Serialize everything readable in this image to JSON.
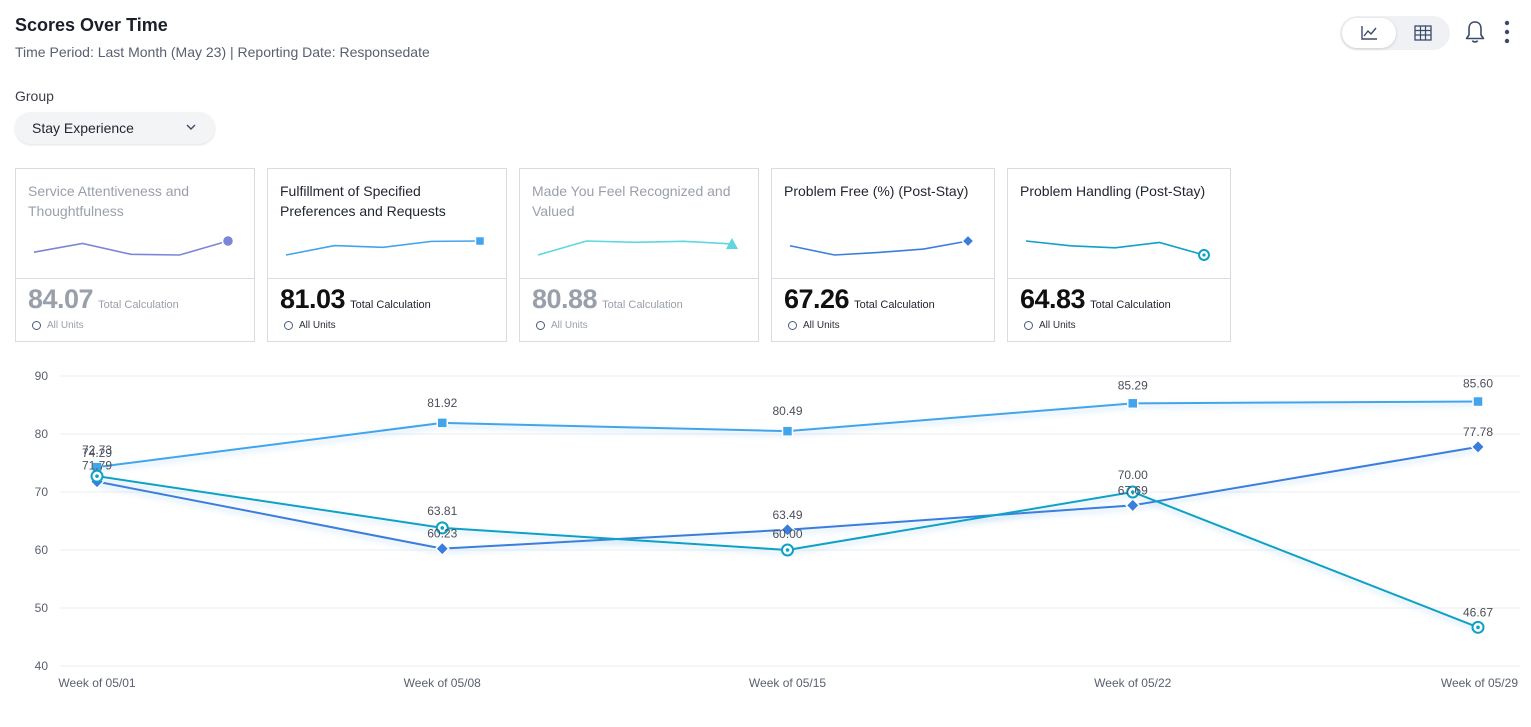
{
  "header": {
    "title": "Scores Over Time",
    "subtitle": "Time Period: Last Month (May 23) | Reporting Date: Responsedate"
  },
  "toolbar": {
    "icons": [
      "line-chart-icon",
      "table-icon",
      "bell-icon",
      "more-vertical-icon"
    ]
  },
  "group": {
    "label": "Group",
    "selected": "Stay Experience"
  },
  "cards": [
    {
      "title": "Service Attentiveness and Thoughtfulness",
      "value": "84.07",
      "calc": "Total Calculation",
      "unit": "All Units",
      "muted": true,
      "color": "#7b86d6",
      "marker": "circle",
      "spark": [
        74.29,
        81.92,
        72.4,
        71.8,
        84.07
      ]
    },
    {
      "title": "Fulfillment of Specified Preferences and Requests",
      "value": "81.03",
      "calc": "Total Calculation",
      "unit": "All Units",
      "muted": false,
      "color": "#42a5ec",
      "marker": "square",
      "spark": [
        74.29,
        81.92,
        80.49,
        85.29,
        85.6
      ]
    },
    {
      "title": "Made You Feel Recognized and Valued",
      "value": "80.88",
      "calc": "Total Calculation",
      "unit": "All Units",
      "muted": true,
      "color": "#5fd7dd",
      "marker": "triangle",
      "spark": [
        72.0,
        81.5,
        80.6,
        81.3,
        79.5
      ]
    },
    {
      "title": "Problem Free (%) (Post-Stay)",
      "value": "67.26",
      "calc": "Total Calculation",
      "unit": "All Units",
      "muted": false,
      "color": "#3b7ddd",
      "marker": "diamond",
      "spark": [
        71.79,
        60.23,
        63.49,
        67.69,
        77.78
      ]
    },
    {
      "title": "Problem Handling (Post-Stay)",
      "value": "64.83",
      "calc": "Total Calculation",
      "unit": "All Units",
      "muted": false,
      "color": "#0ea1c6",
      "marker": "ring",
      "spark": [
        72.73,
        63.81,
        60.0,
        70.0,
        46.67
      ]
    }
  ],
  "chart_data": {
    "type": "line",
    "categories": [
      "Week of 05/01",
      "Week of 05/08",
      "Week of 05/15",
      "Week of 05/22",
      "Week of 05/29"
    ],
    "ylim": [
      40,
      90
    ],
    "yticks": [
      40,
      50,
      60,
      70,
      80,
      90
    ],
    "series": [
      {
        "name": "Fulfillment of Specified Preferences and Requests",
        "color": "#42a5ec",
        "marker": "square",
        "values": [
          74.29,
          81.92,
          80.49,
          85.29,
          85.6
        ],
        "labels": [
          "74.29",
          "81.92",
          "80.49",
          "85.29",
          "85.60"
        ]
      },
      {
        "name": "Problem Free (%) (Post-Stay)",
        "color": "#3b7ddd",
        "marker": "diamond",
        "values": [
          71.79,
          60.23,
          63.49,
          67.69,
          77.78
        ],
        "labels": [
          "71.79",
          "60.23",
          "63.49",
          "67.69",
          "77.78"
        ]
      },
      {
        "name": "Problem Handling (Post-Stay)",
        "color": "#0ea1c6",
        "marker": "ring",
        "values": [
          72.73,
          63.81,
          60.0,
          70.0,
          46.67
        ],
        "labels": [
          "72.73",
          "63.81",
          "60.00",
          "70.00",
          "46.67"
        ]
      }
    ]
  }
}
